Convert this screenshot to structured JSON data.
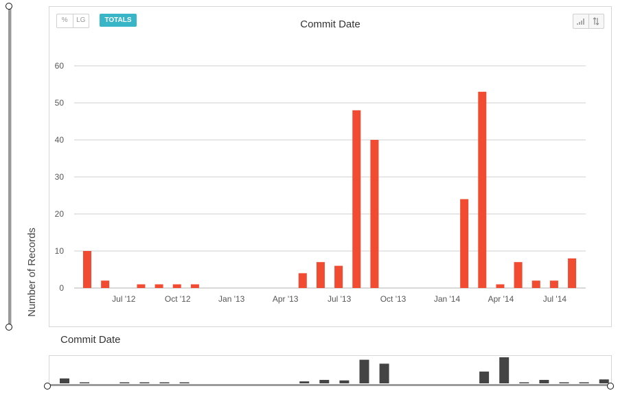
{
  "toolbar": {
    "percent_label": "%",
    "lg_label": "LG",
    "totals_label": "TOTALS",
    "icons": [
      "bar-signal-icon",
      "sort-arrows-icon"
    ]
  },
  "colors": {
    "bar": "#f14b32",
    "overview_bar": "#444444",
    "accent": "#38b6c8"
  },
  "chart_data": {
    "type": "bar",
    "title": "Commit Date",
    "xlabel": "",
    "ylabel": "Number of Records",
    "ylim": [
      0,
      60
    ],
    "yticks": [
      0,
      10,
      20,
      30,
      40,
      50,
      60
    ],
    "grid": true,
    "xtick_labels": [
      "Jul '12",
      "Oct '12",
      "Jan '13",
      "Apr '13",
      "Jul '13",
      "Oct '13",
      "Jan '14",
      "Apr '14",
      "Jul '14"
    ],
    "categories": [
      "May '12",
      "Jun '12",
      "Jul '12",
      "Aug '12",
      "Sep '12",
      "Oct '12",
      "Nov '12",
      "Dec '12",
      "Jan '13",
      "Feb '13",
      "Mar '13",
      "Apr '13",
      "May '13",
      "Jun '13",
      "Jul '13",
      "Aug '13",
      "Sep '13",
      "Oct '13",
      "Nov '13",
      "Dec '13",
      "Jan '14",
      "Feb '14",
      "Mar '14",
      "Apr '14",
      "May '14",
      "Jun '14",
      "Jul '14",
      "Aug '14",
      "Sep '14"
    ],
    "values": [
      10,
      2,
      0,
      1,
      1,
      1,
      1,
      0,
      0,
      0,
      0,
      0,
      4,
      7,
      6,
      48,
      40,
      0,
      0,
      0,
      0,
      24,
      53,
      1,
      7,
      2,
      2,
      8,
      0
    ]
  },
  "overview": {
    "title": "Commit Date"
  }
}
